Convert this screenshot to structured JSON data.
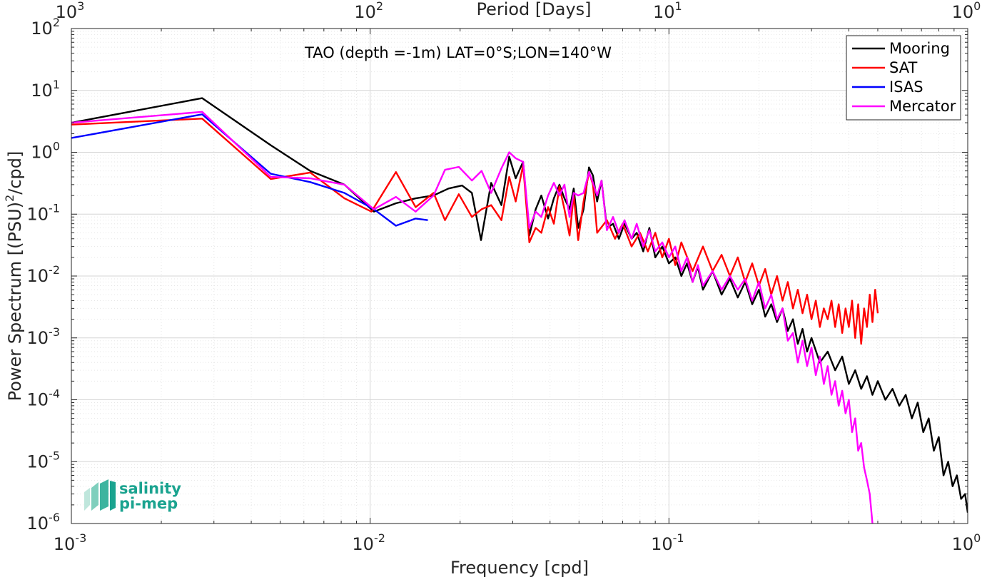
{
  "chart_data": {
    "type": "line",
    "annotation": "TAO (depth =-1m) LAT=0°S;LON=140°W",
    "xlabel": "Frequency [cpd]",
    "ylabel": "Power Spectrum [(PSU)",
    "ylabel_sup": "2",
    "ylabel_tail": "/cpd]",
    "top_xlabel": "Period [Days]",
    "xscale": "log",
    "yscale": "log",
    "xlim": [
      0.001,
      1
    ],
    "ylim": [
      1e-06,
      100
    ],
    "grid": true,
    "legend_position": "top-right",
    "x_ticks": [
      {
        "value": 0.001,
        "base": "10",
        "exp": "-3"
      },
      {
        "value": 0.01,
        "base": "10",
        "exp": "-2"
      },
      {
        "value": 0.1,
        "base": "10",
        "exp": "-1"
      },
      {
        "value": 1,
        "base": "10",
        "exp": "0"
      }
    ],
    "top_ticks": [
      {
        "value": 0.001,
        "base": "10",
        "exp": "3"
      },
      {
        "value": 0.01,
        "base": "10",
        "exp": "2"
      },
      {
        "value": 0.1,
        "base": "10",
        "exp": "1"
      },
      {
        "value": 1,
        "base": "10",
        "exp": "0"
      }
    ],
    "y_ticks": [
      {
        "value": 1e-06,
        "base": "10",
        "exp": "-6"
      },
      {
        "value": 1e-05,
        "base": "10",
        "exp": "-5"
      },
      {
        "value": 0.0001,
        "base": "10",
        "exp": "-4"
      },
      {
        "value": 0.001,
        "base": "10",
        "exp": "-3"
      },
      {
        "value": 0.01,
        "base": "10",
        "exp": "-2"
      },
      {
        "value": 0.1,
        "base": "10",
        "exp": "-1"
      },
      {
        "value": 1,
        "base": "10",
        "exp": "0"
      },
      {
        "value": 10,
        "base": "10",
        "exp": "1"
      },
      {
        "value": 100,
        "base": "10",
        "exp": "2"
      }
    ],
    "series": [
      {
        "name": "Mooring",
        "color": "#000000",
        "points": [
          [
            0.001,
            3.0
          ],
          [
            0.00274,
            7.5
          ],
          [
            0.00465,
            1.3
          ],
          [
            0.0063,
            0.5
          ],
          [
            0.0082,
            0.3
          ],
          [
            0.0103,
            0.11
          ],
          [
            0.0122,
            0.15
          ],
          [
            0.0142,
            0.18
          ],
          [
            0.0163,
            0.2
          ],
          [
            0.0183,
            0.26
          ],
          [
            0.0203,
            0.29
          ],
          [
            0.0219,
            0.22
          ],
          [
            0.0235,
            0.038
          ],
          [
            0.0254,
            0.32
          ],
          [
            0.0275,
            0.14
          ],
          [
            0.0292,
            0.85
          ],
          [
            0.0307,
            0.38
          ],
          [
            0.0325,
            0.7
          ],
          [
            0.0341,
            0.045
          ],
          [
            0.0358,
            0.12
          ],
          [
            0.0374,
            0.2
          ],
          [
            0.0394,
            0.085
          ],
          [
            0.0412,
            0.18
          ],
          [
            0.043,
            0.3
          ],
          [
            0.0447,
            0.18
          ],
          [
            0.0465,
            0.12
          ],
          [
            0.048,
            0.26
          ],
          [
            0.0497,
            0.06
          ],
          [
            0.0518,
            0.12
          ],
          [
            0.054,
            0.57
          ],
          [
            0.0557,
            0.42
          ],
          [
            0.0575,
            0.16
          ],
          [
            0.0595,
            0.35
          ],
          [
            0.062,
            0.06
          ],
          [
            0.065,
            0.07
          ],
          [
            0.068,
            0.04
          ],
          [
            0.071,
            0.07
          ],
          [
            0.075,
            0.04
          ],
          [
            0.078,
            0.05
          ],
          [
            0.082,
            0.025
          ],
          [
            0.086,
            0.06
          ],
          [
            0.09,
            0.02
          ],
          [
            0.095,
            0.03
          ],
          [
            0.1,
            0.016
          ],
          [
            0.105,
            0.02
          ],
          [
            0.11,
            0.01
          ],
          [
            0.115,
            0.016
          ],
          [
            0.12,
            0.008
          ],
          [
            0.125,
            0.014
          ],
          [
            0.13,
            0.006
          ],
          [
            0.14,
            0.012
          ],
          [
            0.15,
            0.005
          ],
          [
            0.16,
            0.009
          ],
          [
            0.17,
            0.0045
          ],
          [
            0.18,
            0.008
          ],
          [
            0.19,
            0.0035
          ],
          [
            0.2,
            0.006
          ],
          [
            0.21,
            0.0022
          ],
          [
            0.22,
            0.0035
          ],
          [
            0.23,
            0.0018
          ],
          [
            0.24,
            0.003
          ],
          [
            0.25,
            0.0013
          ],
          [
            0.26,
            0.002
          ],
          [
            0.27,
            0.0008
          ],
          [
            0.28,
            0.0014
          ],
          [
            0.29,
            0.0006
          ],
          [
            0.3,
            0.001
          ],
          [
            0.32,
            0.0004
          ],
          [
            0.34,
            0.0006
          ],
          [
            0.36,
            0.0003
          ],
          [
            0.38,
            0.0005
          ],
          [
            0.4,
            0.00018
          ],
          [
            0.42,
            0.0003
          ],
          [
            0.44,
            0.00015
          ],
          [
            0.46,
            0.00024
          ],
          [
            0.48,
            0.00012
          ],
          [
            0.5,
            0.0002
          ],
          [
            0.53,
            0.0001
          ],
          [
            0.56,
            0.00015
          ],
          [
            0.59,
            8e-05
          ],
          [
            0.62,
            0.00012
          ],
          [
            0.65,
            5e-05
          ],
          [
            0.68,
            9e-05
          ],
          [
            0.71,
            3e-05
          ],
          [
            0.74,
            5e-05
          ],
          [
            0.77,
            1.5e-05
          ],
          [
            0.8,
            2.5e-05
          ],
          [
            0.83,
            6e-06
          ],
          [
            0.86,
            1e-05
          ],
          [
            0.89,
            4e-06
          ],
          [
            0.92,
            6e-06
          ],
          [
            0.95,
            2.5e-06
          ],
          [
            0.98,
            3e-06
          ],
          [
            1.0,
            1.5e-06
          ]
        ]
      },
      {
        "name": "SAT",
        "color": "#ff0000",
        "points": [
          [
            0.001,
            2.8
          ],
          [
            0.00274,
            3.5
          ],
          [
            0.00465,
            0.37
          ],
          [
            0.0063,
            0.47
          ],
          [
            0.0082,
            0.18
          ],
          [
            0.0101,
            0.11
          ],
          [
            0.0122,
            0.48
          ],
          [
            0.0142,
            0.13
          ],
          [
            0.0163,
            0.22
          ],
          [
            0.0178,
            0.08
          ],
          [
            0.0198,
            0.21
          ],
          [
            0.0219,
            0.09
          ],
          [
            0.0236,
            0.12
          ],
          [
            0.0254,
            0.14
          ],
          [
            0.0275,
            0.08
          ],
          [
            0.0292,
            0.4
          ],
          [
            0.0307,
            0.16
          ],
          [
            0.0325,
            0.62
          ],
          [
            0.0341,
            0.035
          ],
          [
            0.0358,
            0.06
          ],
          [
            0.0374,
            0.05
          ],
          [
            0.0394,
            0.13
          ],
          [
            0.0412,
            0.07
          ],
          [
            0.043,
            0.28
          ],
          [
            0.0447,
            0.12
          ],
          [
            0.0465,
            0.045
          ],
          [
            0.048,
            0.2
          ],
          [
            0.0497,
            0.038
          ],
          [
            0.0518,
            0.16
          ],
          [
            0.054,
            0.48
          ],
          [
            0.0557,
            0.3
          ],
          [
            0.0575,
            0.05
          ],
          [
            0.062,
            0.08
          ],
          [
            0.066,
            0.04
          ],
          [
            0.07,
            0.07
          ],
          [
            0.075,
            0.03
          ],
          [
            0.08,
            0.05
          ],
          [
            0.085,
            0.025
          ],
          [
            0.09,
            0.05
          ],
          [
            0.095,
            0.02
          ],
          [
            0.1,
            0.04
          ],
          [
            0.105,
            0.015
          ],
          [
            0.11,
            0.035
          ],
          [
            0.12,
            0.012
          ],
          [
            0.13,
            0.03
          ],
          [
            0.14,
            0.012
          ],
          [
            0.15,
            0.022
          ],
          [
            0.16,
            0.01
          ],
          [
            0.17,
            0.02
          ],
          [
            0.18,
            0.008
          ],
          [
            0.19,
            0.016
          ],
          [
            0.2,
            0.007
          ],
          [
            0.21,
            0.013
          ],
          [
            0.22,
            0.005
          ],
          [
            0.23,
            0.01
          ],
          [
            0.24,
            0.004
          ],
          [
            0.25,
            0.008
          ],
          [
            0.26,
            0.003
          ],
          [
            0.27,
            0.006
          ],
          [
            0.28,
            0.0025
          ],
          [
            0.29,
            0.005
          ],
          [
            0.3,
            0.002
          ],
          [
            0.31,
            0.004
          ],
          [
            0.32,
            0.0015
          ],
          [
            0.33,
            0.003
          ],
          [
            0.34,
            0.002
          ],
          [
            0.35,
            0.004
          ],
          [
            0.36,
            0.0015
          ],
          [
            0.37,
            0.0035
          ],
          [
            0.38,
            0.0012
          ],
          [
            0.39,
            0.003
          ],
          [
            0.4,
            0.0015
          ],
          [
            0.41,
            0.004
          ],
          [
            0.42,
            0.001
          ],
          [
            0.43,
            0.0035
          ],
          [
            0.44,
            0.0008
          ],
          [
            0.45,
            0.003
          ],
          [
            0.46,
            0.0015
          ],
          [
            0.47,
            0.005
          ],
          [
            0.48,
            0.0018
          ],
          [
            0.49,
            0.006
          ],
          [
            0.5,
            0.0025
          ]
        ]
      },
      {
        "name": "ISAS",
        "color": "#0000ff",
        "points": [
          [
            0.001,
            1.7
          ],
          [
            0.00274,
            4.1
          ],
          [
            0.00465,
            0.45
          ],
          [
            0.0063,
            0.33
          ],
          [
            0.0082,
            0.22
          ],
          [
            0.0103,
            0.12
          ],
          [
            0.0122,
            0.065
          ],
          [
            0.0142,
            0.085
          ],
          [
            0.0156,
            0.08
          ]
        ]
      },
      {
        "name": "Mercator",
        "color": "#ff00ff",
        "points": [
          [
            0.001,
            3.0
          ],
          [
            0.00274,
            4.5
          ],
          [
            0.00465,
            0.4
          ],
          [
            0.0063,
            0.38
          ],
          [
            0.0082,
            0.3
          ],
          [
            0.0103,
            0.12
          ],
          [
            0.0122,
            0.19
          ],
          [
            0.0142,
            0.11
          ],
          [
            0.0163,
            0.2
          ],
          [
            0.0178,
            0.52
          ],
          [
            0.0198,
            0.58
          ],
          [
            0.0219,
            0.35
          ],
          [
            0.0236,
            0.5
          ],
          [
            0.0254,
            0.22
          ],
          [
            0.0275,
            0.55
          ],
          [
            0.0292,
            1.0
          ],
          [
            0.0307,
            0.8
          ],
          [
            0.0325,
            0.7
          ],
          [
            0.0341,
            0.06
          ],
          [
            0.0358,
            0.11
          ],
          [
            0.0374,
            0.09
          ],
          [
            0.0394,
            0.2
          ],
          [
            0.0412,
            0.32
          ],
          [
            0.043,
            0.2
          ],
          [
            0.0447,
            0.3
          ],
          [
            0.0465,
            0.09
          ],
          [
            0.048,
            0.22
          ],
          [
            0.0497,
            0.2
          ],
          [
            0.0518,
            0.22
          ],
          [
            0.054,
            0.48
          ],
          [
            0.0557,
            0.32
          ],
          [
            0.0575,
            0.2
          ],
          [
            0.0595,
            0.35
          ],
          [
            0.062,
            0.055
          ],
          [
            0.065,
            0.09
          ],
          [
            0.068,
            0.05
          ],
          [
            0.071,
            0.08
          ],
          [
            0.075,
            0.04
          ],
          [
            0.078,
            0.07
          ],
          [
            0.082,
            0.03
          ],
          [
            0.086,
            0.055
          ],
          [
            0.09,
            0.025
          ],
          [
            0.095,
            0.035
          ],
          [
            0.1,
            0.02
          ],
          [
            0.105,
            0.03
          ],
          [
            0.11,
            0.012
          ],
          [
            0.115,
            0.02
          ],
          [
            0.12,
            0.008
          ],
          [
            0.125,
            0.015
          ],
          [
            0.13,
            0.007
          ],
          [
            0.14,
            0.012
          ],
          [
            0.15,
            0.006
          ],
          [
            0.16,
            0.01
          ],
          [
            0.17,
            0.006
          ],
          [
            0.18,
            0.009
          ],
          [
            0.19,
            0.004
          ],
          [
            0.2,
            0.008
          ],
          [
            0.21,
            0.003
          ],
          [
            0.22,
            0.005
          ],
          [
            0.23,
            0.002
          ],
          [
            0.24,
            0.003
          ],
          [
            0.25,
            0.0009
          ],
          [
            0.26,
            0.0012
          ],
          [
            0.27,
            0.0004
          ],
          [
            0.28,
            0.0009
          ],
          [
            0.29,
            0.00035
          ],
          [
            0.3,
            0.0007
          ],
          [
            0.31,
            0.00025
          ],
          [
            0.32,
            0.0005
          ],
          [
            0.33,
            0.00018
          ],
          [
            0.34,
            0.00035
          ],
          [
            0.35,
            0.00012
          ],
          [
            0.36,
            0.0002
          ],
          [
            0.37,
            8e-05
          ],
          [
            0.38,
            0.00014
          ],
          [
            0.39,
            6e-05
          ],
          [
            0.4,
            0.0001
          ],
          [
            0.41,
            3e-05
          ],
          [
            0.42,
            5e-05
          ],
          [
            0.43,
            1.5e-05
          ],
          [
            0.44,
            2e-05
          ],
          [
            0.45,
            8e-06
          ],
          [
            0.46,
            5e-06
          ],
          [
            0.47,
            3e-06
          ],
          [
            0.48,
            1e-06
          ]
        ]
      }
    ]
  },
  "logo": {
    "line1": "salinity",
    "line2": "pi-mep",
    "color": "#1aa38f"
  }
}
